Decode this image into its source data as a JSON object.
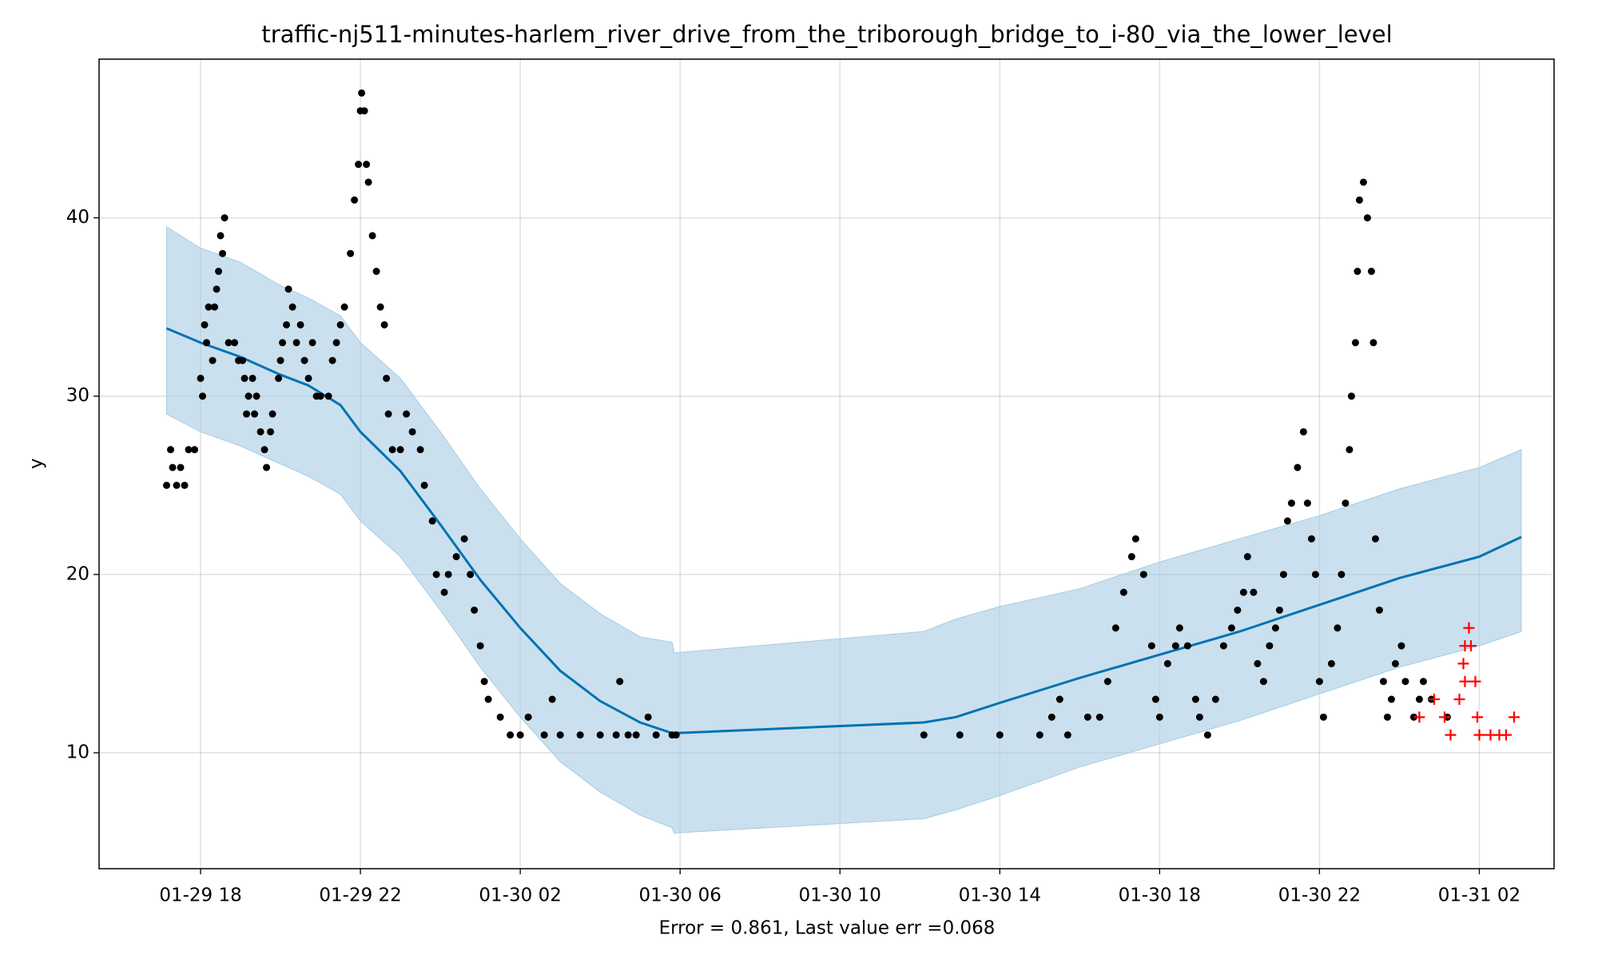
{
  "chart_data": {
    "type": "forecast",
    "title": "traffic-nj511-minutes-harlem_river_drive_from_the_triborough_bridge_to_i-80_via_the_lower_level",
    "x_label": "Error = 0.861, Last value err =0.068",
    "y_label": "y",
    "xlim": [
      15.46,
      51.87
    ],
    "ylim": [
      3.5,
      48.9
    ],
    "xticks": [
      {
        "value": 18,
        "label": "01-29 18"
      },
      {
        "value": 22,
        "label": "01-29 22"
      },
      {
        "value": 26,
        "label": "01-30 02"
      },
      {
        "value": 30,
        "label": "01-30 06"
      },
      {
        "value": 34,
        "label": "01-30 10"
      },
      {
        "value": 38,
        "label": "01-30 14"
      },
      {
        "value": 42,
        "label": "01-30 18"
      },
      {
        "value": 46,
        "label": "01-30 22"
      },
      {
        "value": 50,
        "label": "01-31 02"
      }
    ],
    "yticks": [
      10,
      20,
      30,
      40
    ],
    "grid": true,
    "forecast": {
      "color": "#0072b2",
      "band_color": "#a6cbe3",
      "x": [
        17.15,
        18,
        19,
        20,
        20.7,
        21.5,
        22,
        23,
        24,
        25,
        26,
        27,
        28,
        29,
        29.8,
        29.85,
        36.1,
        36.9,
        38,
        40,
        42,
        44,
        46,
        48,
        50,
        51.05
      ],
      "values": [
        33.8,
        33.0,
        32.2,
        31.2,
        30.6,
        29.5,
        28,
        25.8,
        22.8,
        19.7,
        17,
        14.6,
        12.9,
        11.7,
        11.1,
        11.1,
        11.7,
        12,
        12.8,
        14.2,
        15.5,
        16.8,
        18.3,
        19.8,
        21,
        22.1
      ],
      "lower": [
        29,
        28,
        27.2,
        26.2,
        25.5,
        24.5,
        23,
        21,
        18,
        14.8,
        12,
        9.5,
        7.8,
        6.5,
        5.8,
        5.5,
        6.3,
        6.8,
        7.6,
        9.2,
        10.5,
        11.8,
        13.3,
        14.8,
        16,
        16.8
      ],
      "upper": [
        39.5,
        38.3,
        37.5,
        36.2,
        35.5,
        34.5,
        33,
        31,
        28,
        24.8,
        22,
        19.5,
        17.8,
        16.5,
        16.2,
        15.6,
        16.8,
        17.5,
        18.2,
        19.2,
        20.7,
        22,
        23.3,
        24.8,
        26,
        27
      ]
    },
    "history": {
      "color": "#000000",
      "x": [
        17.15,
        17.25,
        17.3,
        17.4,
        17.5,
        17.6,
        17.7,
        17.85,
        18.0,
        18.05,
        18.1,
        18.15,
        18.2,
        18.3,
        18.35,
        18.4,
        18.45,
        18.5,
        18.55,
        18.6,
        18.7,
        18.85,
        18.95,
        19.05,
        19.1,
        19.15,
        19.2,
        19.3,
        19.35,
        19.4,
        19.5,
        19.6,
        19.65,
        19.75,
        19.8,
        19.95,
        20.0,
        20.05,
        20.15,
        20.2,
        20.3,
        20.4,
        20.5,
        20.6,
        20.7,
        20.8,
        20.9,
        21.0,
        21.2,
        21.3,
        21.4,
        21.5,
        21.6,
        21.75,
        21.85,
        21.95,
        22.0,
        22.03,
        22.1,
        22.15,
        22.2,
        22.3,
        22.4,
        22.5,
        22.6,
        22.65,
        22.7,
        22.8,
        23.0,
        23.15,
        23.3,
        23.5,
        23.6,
        23.8,
        23.9,
        24.1,
        24.2,
        24.4,
        24.6,
        24.75,
        24.85,
        25.0,
        25.1,
        25.2,
        25.5,
        25.75,
        26.0,
        26.2,
        26.6,
        26.8,
        27.0,
        27.5,
        28.0,
        28.4,
        28.49,
        28.7,
        28.9,
        29.2,
        29.4,
        29.8,
        29.9,
        36.1,
        37,
        38,
        39,
        39.3,
        39.5,
        39.7,
        40.2,
        40.5,
        40.7,
        40.9,
        41.1,
        41.3,
        41.4,
        41.6,
        41.8,
        41.9,
        42.0,
        42.2,
        42.4,
        42.5,
        42.7,
        42.9,
        43.0,
        43.2,
        43.4,
        43.6,
        43.8,
        43.95,
        44.1,
        44.2,
        44.35,
        44.45,
        44.6,
        44.75,
        44.9,
        45.0,
        45.1,
        45.2,
        45.3,
        45.45,
        45.6,
        45.7,
        45.8,
        45.9,
        46.0,
        46.1,
        46.3,
        46.45,
        46.55,
        46.65,
        46.75,
        46.8,
        46.9,
        46.95,
        47.0,
        47.1,
        47.2,
        47.3,
        47.35,
        47.4,
        47.5,
        47.6,
        47.7,
        47.8,
        47.9,
        48.05,
        48.15,
        48.36,
        48.5,
        48.6,
        48.8,
        49.2
      ],
      "values": [
        25,
        27,
        26,
        25,
        26,
        25,
        27,
        27,
        31,
        30,
        34,
        33,
        35,
        32,
        35,
        36,
        37,
        39,
        38,
        40,
        33,
        33,
        32,
        32,
        31,
        29,
        30,
        31,
        29,
        30,
        28,
        27,
        26,
        28,
        29,
        31,
        32,
        33,
        34,
        36,
        35,
        33,
        34,
        32,
        31,
        33,
        30,
        30,
        30,
        32,
        33,
        34,
        35,
        38,
        41,
        43,
        46,
        47,
        46,
        43,
        42,
        39,
        37,
        35,
        34,
        31,
        29,
        27,
        27,
        29,
        28,
        27,
        25,
        23,
        20,
        19,
        20,
        21,
        22,
        20,
        18,
        16,
        14,
        13,
        12,
        11,
        11,
        12,
        11,
        13,
        11,
        11,
        11,
        11,
        14,
        11,
        11,
        12,
        11,
        11,
        11,
        11,
        11,
        11,
        11,
        12,
        13,
        11,
        12,
        12,
        14,
        17,
        19,
        21,
        22,
        20,
        16,
        13,
        12,
        15,
        16,
        17,
        16,
        13,
        12,
        11,
        13,
        16,
        17,
        18,
        19,
        21,
        19,
        15,
        14,
        16,
        17,
        18,
        20,
        23,
        24,
        26,
        28,
        24,
        22,
        20,
        14,
        12,
        15,
        17,
        20,
        24,
        27,
        30,
        33,
        37,
        41,
        42,
        40,
        37,
        33,
        22,
        18,
        14,
        12,
        13,
        15,
        16,
        14,
        12,
        13,
        14,
        13,
        12
      ]
    },
    "future_actual": {
      "color": "#ff0000",
      "x": [
        48.5,
        48.87,
        49.13,
        49.28,
        49.5,
        49.6,
        49.64,
        49.64,
        49.74,
        49.79,
        49.9,
        49.95,
        50.0,
        50.28,
        50.5,
        50.67,
        50.87
      ],
      "values": [
        12,
        13,
        12,
        11,
        13,
        15,
        16,
        14,
        17,
        16,
        14,
        12,
        11,
        11,
        11,
        11,
        12
      ]
    }
  }
}
